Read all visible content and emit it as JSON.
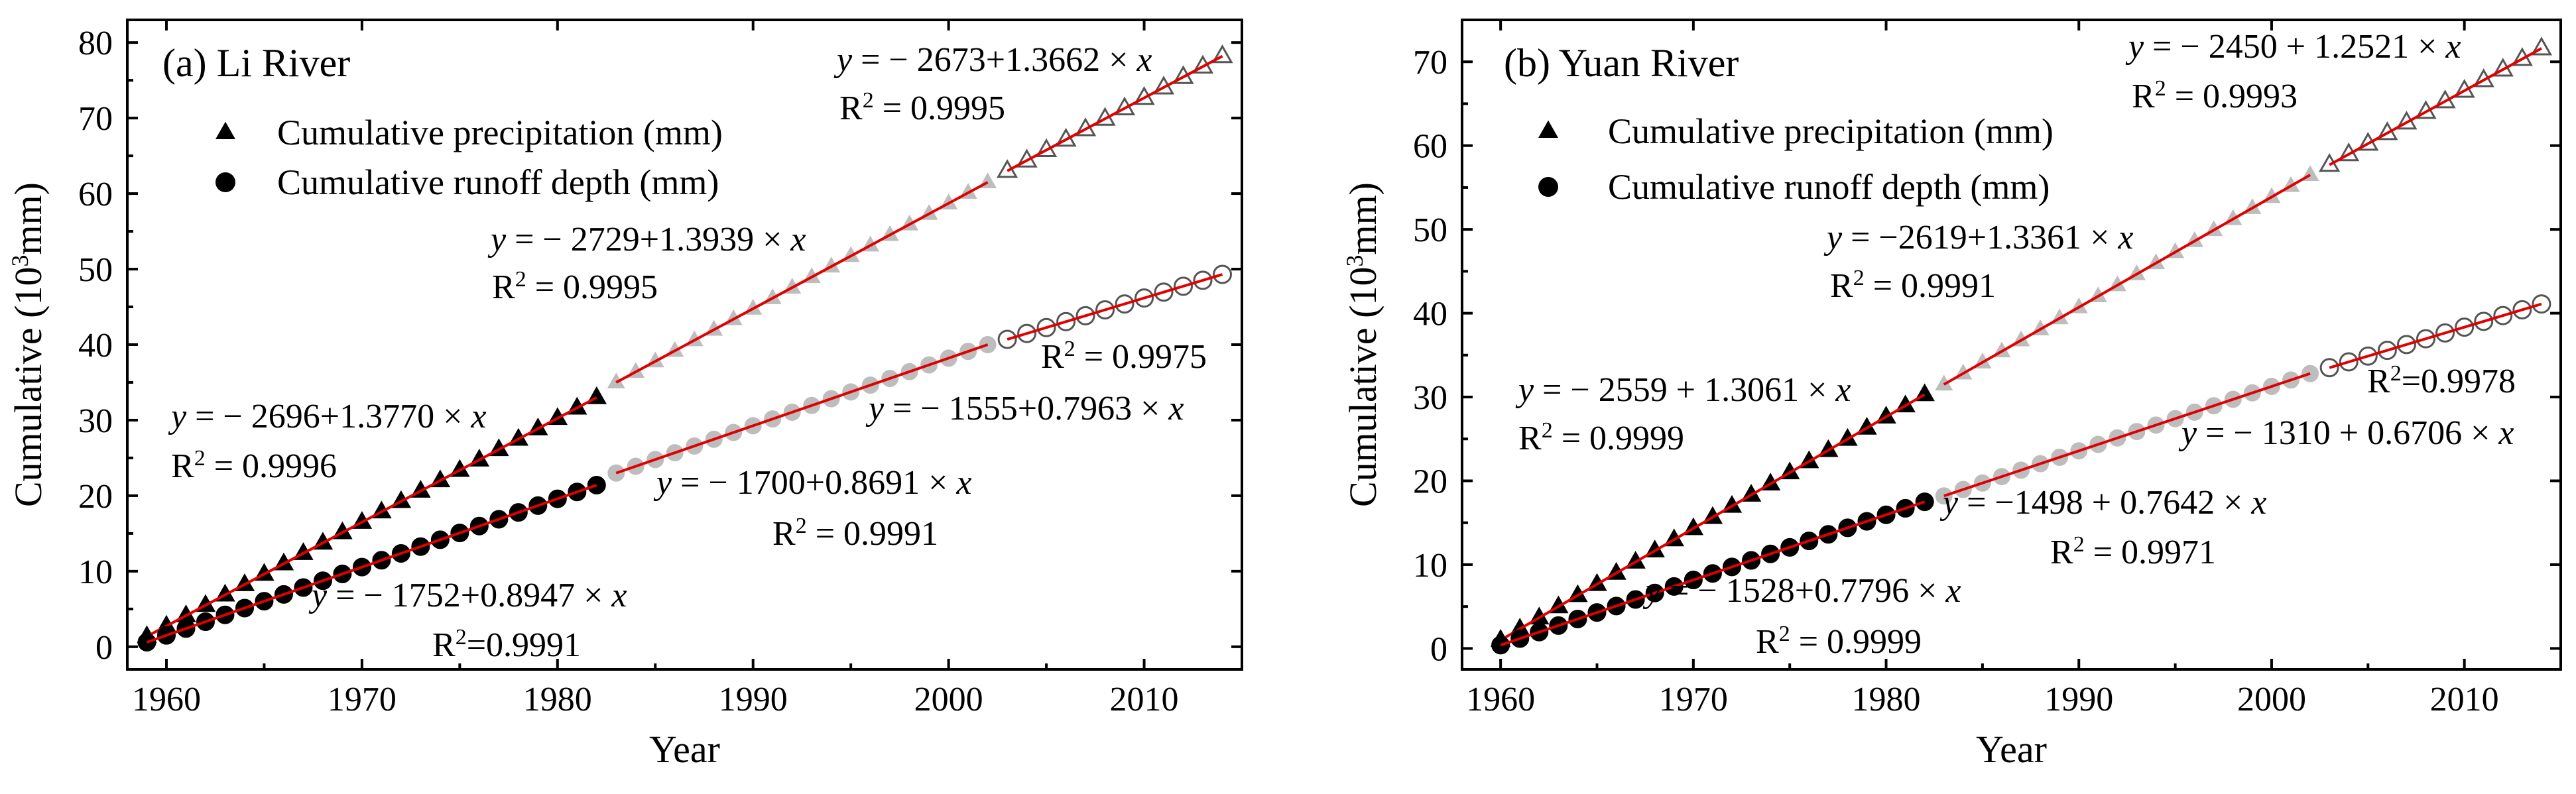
{
  "chart_data": [
    {
      "panel": "a",
      "type": "scatter",
      "title": "(a) Li River",
      "xlabel": "Year",
      "ylabel": "Cumulative (10³mm)",
      "xlim": [
        1958,
        2015
      ],
      "ylim": [
        -3,
        83
      ],
      "xticks": [
        1960,
        1970,
        1980,
        1990,
        2000,
        2010
      ],
      "yticks": [
        0,
        10,
        20,
        30,
        40,
        50,
        60,
        70,
        80
      ],
      "legend": [
        {
          "marker": "triangle",
          "label": "Cumulative precipitation (mm)"
        },
        {
          "marker": "circle",
          "label": "Cumulative runoff depth (mm)"
        }
      ],
      "series": [
        {
          "name": "Cumulative precipitation (mm)",
          "period": "1959-1982",
          "style": "black-triangle",
          "x": [
            1959,
            1982
          ],
          "y": [
            1.37,
            33.0
          ],
          "fit": {
            "a": -2696,
            "b": 1.377
          },
          "eq_label": "y = − 2696+1.3770 × x",
          "r2_label": "R² = 0.9996"
        },
        {
          "name": "Cumulative precipitation (mm)",
          "period": "1983-2002",
          "style": "gray-triangle",
          "x": [
            1983,
            2002
          ],
          "y": [
            35.0,
            61.5
          ],
          "fit": {
            "a": -2729,
            "b": 1.3939
          },
          "eq_label": "y = − 2729+1.3939 × x",
          "r2_label": "R² = 0.9995"
        },
        {
          "name": "Cumulative precipitation (mm)",
          "period": "2003-2014",
          "style": "open-triangle",
          "x": [
            2003,
            2014
          ],
          "y": [
            63.0,
            78.2
          ],
          "fit": {
            "a": -2673,
            "b": 1.3662
          },
          "eq_label": "y = − 2673+1.3662 × x",
          "r2_label": "R² = 0.9995"
        },
        {
          "name": "Cumulative runoff depth (mm)",
          "period": "1959-1982",
          "style": "black-circle",
          "x": [
            1959,
            1982
          ],
          "y": [
            0.6,
            21.4
          ],
          "fit": {
            "a": -1752,
            "b": 0.8947
          },
          "eq_label": "y = − 1752+0.8947 × x",
          "r2_label": "R²=0.9991"
        },
        {
          "name": "Cumulative runoff depth (mm)",
          "period": "1983-2002",
          "style": "gray-circle",
          "x": [
            1983,
            2002
          ],
          "y": [
            23.0,
            40.0
          ],
          "fit": {
            "a": -1700,
            "b": 0.8691
          },
          "eq_label": "y = − 1700+0.8691 × x",
          "r2_label": "R² = 0.9991"
        },
        {
          "name": "Cumulative runoff depth (mm)",
          "period": "2003-2014",
          "style": "open-circle",
          "x": [
            2003,
            2014
          ],
          "y": [
            40.7,
            49.3
          ],
          "fit": {
            "a": -1555,
            "b": 0.7963
          },
          "eq_label": "y = − 1555+0.7963 × x",
          "r2_label": "R² = 0.9975"
        }
      ]
    },
    {
      "panel": "b",
      "type": "scatter",
      "title": "(b) Yuan River",
      "xlabel": "Year",
      "ylabel": "Cumulative (10³mm)",
      "xlim": [
        1958,
        2015
      ],
      "ylim": [
        -2.5,
        75
      ],
      "xticks": [
        1960,
        1970,
        1980,
        1990,
        2000,
        2010
      ],
      "yticks": [
        0,
        10,
        20,
        30,
        40,
        50,
        60,
        70
      ],
      "legend": [
        {
          "marker": "triangle",
          "label": "Cumulative precipitation (mm)"
        },
        {
          "marker": "circle",
          "label": "Cumulative runoff depth (mm)"
        }
      ],
      "series": [
        {
          "name": "Cumulative precipitation (mm)",
          "period": "1960-1982",
          "style": "black-triangle",
          "x": [
            1960,
            1982
          ],
          "y": [
            1.0,
            30.3
          ],
          "fit": {
            "a": -2559,
            "b": 1.3061
          },
          "eq_label": "y = − 2559 + 1.3061 × x",
          "r2_label": "R² = 0.9999"
        },
        {
          "name": "Cumulative precipitation (mm)",
          "period": "1983-2002",
          "style": "gray-triangle",
          "x": [
            1983,
            2002
          ],
          "y": [
            31.5,
            56.5
          ],
          "fit": {
            "a": -2619,
            "b": 1.3361
          },
          "eq_label": "y = −2619+1.3361 × x",
          "r2_label": "R² = 0.9991"
        },
        {
          "name": "Cumulative precipitation (mm)",
          "period": "2003-2014",
          "style": "open-triangle",
          "x": [
            2003,
            2014
          ],
          "y": [
            57.7,
            71.6
          ],
          "fit": {
            "a": -2450,
            "b": 1.2521
          },
          "eq_label": "y = − 2450 + 1.2521 × x",
          "r2_label": "R² = 0.9993"
        },
        {
          "name": "Cumulative runoff depth (mm)",
          "period": "1960-1982",
          "style": "black-circle",
          "x": [
            1960,
            1982
          ],
          "y": [
            0.4,
            17.5
          ],
          "fit": {
            "a": -1528,
            "b": 0.7796
          },
          "eq_label": "y = − 1528+0.7796 × x",
          "r2_label": "R² = 0.9999"
        },
        {
          "name": "Cumulative runoff depth (mm)",
          "period": "1983-2002",
          "style": "gray-circle",
          "x": [
            1983,
            2002
          ],
          "y": [
            18.2,
            32.8
          ],
          "fit": {
            "a": -1498,
            "b": 0.7642
          },
          "eq_label": "y = −1498 + 0.7642 × x",
          "r2_label": "R² = 0.9971"
        },
        {
          "name": "Cumulative runoff depth (mm)",
          "period": "2003-2014",
          "style": "open-circle",
          "x": [
            2003,
            2014
          ],
          "y": [
            33.5,
            41.1
          ],
          "fit": {
            "a": -1310,
            "b": 0.6706
          },
          "eq_label": "y = − 1310 + 0.6706 × x",
          "r2_label": "R²=0.9978"
        }
      ]
    }
  ]
}
